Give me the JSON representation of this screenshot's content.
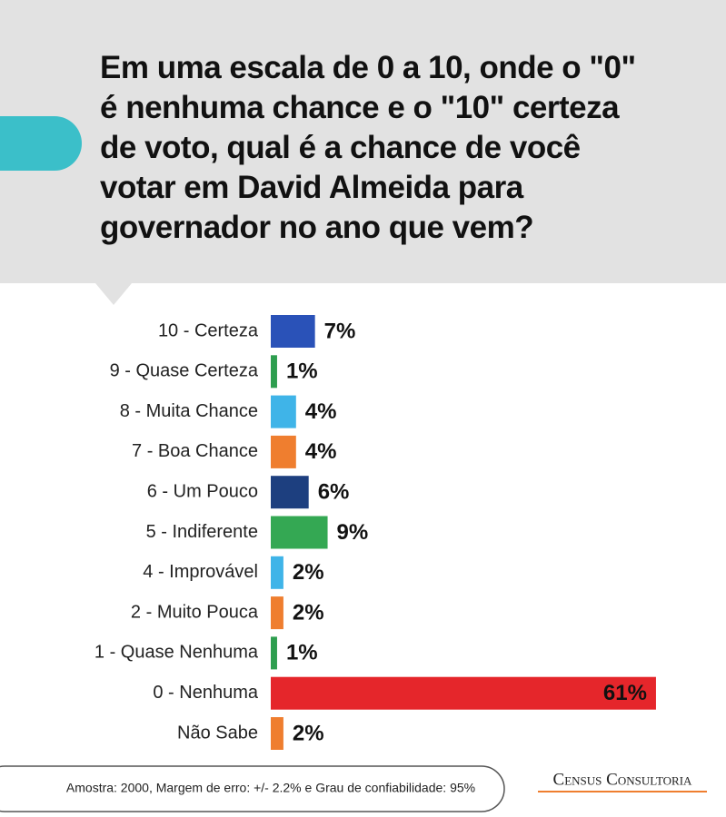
{
  "chart_data": {
    "type": "bar",
    "orientation": "horizontal",
    "title": [
      "Em uma escala de 0 a 10, onde o \"0\"",
      "é nenhuma chance e o \"10\" certeza",
      "de voto, qual é a chance de você",
      "votar em David Almeida para",
      "governador no ano que vem?"
    ],
    "categories": [
      "10 - Certeza",
      "9 - Quase Certeza",
      "8 - Muita Chance",
      "7 - Boa Chance",
      "6 - Um Pouco",
      "5 - Indiferente",
      "4 - Improvável",
      "2 - Muito Pouca",
      "1 - Quase Nenhuma",
      "0 - Nenhuma",
      "Não Sabe"
    ],
    "values": [
      7,
      1,
      4,
      4,
      6,
      9,
      2,
      2,
      1,
      61,
      2
    ],
    "value_labels": [
      "7%",
      "1%",
      "4%",
      "4%",
      "6%",
      "9%",
      "2%",
      "2%",
      "1%",
      "61%",
      "2%"
    ],
    "colors": [
      "#2a52b8",
      "#2e9e4f",
      "#3fb4e8",
      "#ef7e2f",
      "#1d3f7f",
      "#34a853",
      "#3fb4e8",
      "#ef7e2f",
      "#2e9e4f",
      "#e5262b",
      "#ef7e2f"
    ],
    "note": "Amostra: 2000, Margem de erro: +/- 2.2% e Grau de confiabilidade: 95%",
    "source": "Census Consultoria"
  }
}
